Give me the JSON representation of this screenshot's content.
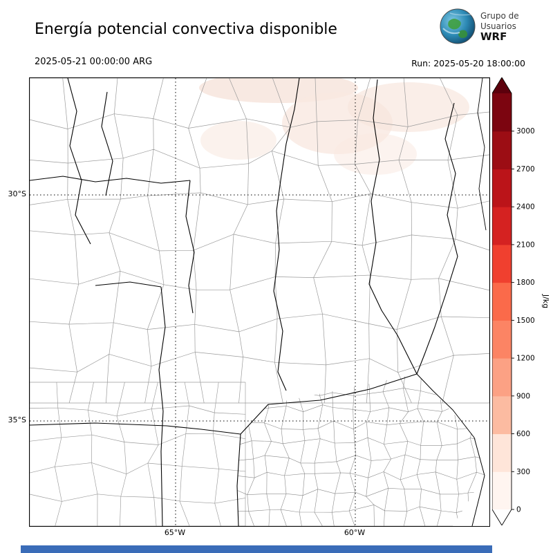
{
  "header": {
    "title": "Energía potencial convectiva disponible",
    "valid_time": "2025-05-21 00:00:00 ARG",
    "run_label": "Run: 2025-05-20 18:00:00",
    "logo": {
      "line1": "Grupo de",
      "line2": "Usuarios",
      "line3": "WRF"
    }
  },
  "map": {
    "lat_labels": [
      "30°S",
      "35°S"
    ],
    "lon_labels": [
      "65°W",
      "60°W"
    ]
  },
  "colorbar": {
    "unit": "J/kg",
    "ticks": [
      "0",
      "300",
      "600",
      "900",
      "1200",
      "1500",
      "1800",
      "2100",
      "2400",
      "2700",
      "3000"
    ],
    "colors": [
      "#fff5f0",
      "#fee5d9",
      "#fcbba1",
      "#fca184",
      "#fc8464",
      "#fb6a4a",
      "#f0402f",
      "#d52221",
      "#bb1419",
      "#9c0d14",
      "#7c0510"
    ],
    "over_color": "#5c000c",
    "under_color": "#ffffff"
  },
  "footer": {
    "bar_color": "#3a6cb8"
  },
  "chart_data": {
    "type": "heatmap",
    "title": "Energía potencial convectiva disponible",
    "unit": "J/kg",
    "levels": [
      0,
      300,
      600,
      900,
      1200,
      1500,
      1800,
      2100,
      2400,
      2700,
      3000
    ],
    "palette_colors": [
      "#fff5f0",
      "#fee5d9",
      "#fcbba1",
      "#fca184",
      "#fc8464",
      "#fb6a4a",
      "#f0402f",
      "#d52221",
      "#bb1419",
      "#9c0d14",
      "#7c0510"
    ],
    "colorbar_orientation": "vertical-right",
    "lat_gridlines": [
      "30°S",
      "35°S"
    ],
    "lon_gridlines": [
      "65°W",
      "60°W"
    ],
    "valid_time": "2025-05-21 00:00:00 ARG",
    "run_time": "Run: 2025-05-20 18:00:00",
    "max_shaded_interval": "0-300"
  }
}
